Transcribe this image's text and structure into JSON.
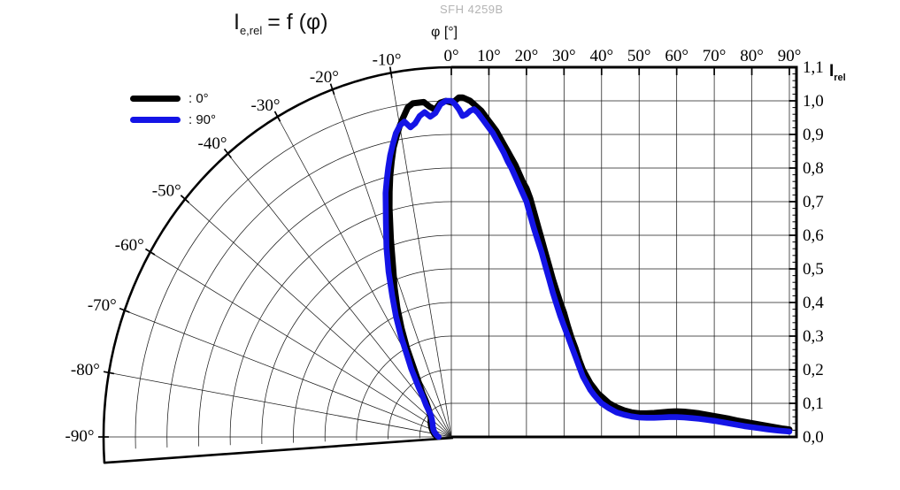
{
  "device_label": "SFH 4259B",
  "title": {
    "main": "I",
    "sub": "e,rel",
    "rest": "= f (φ)"
  },
  "axis_top": {
    "title": "φ [°]",
    "tick_angles": [
      0,
      10,
      20,
      30,
      40,
      50,
      60,
      70,
      80,
      90
    ],
    "tick_labels": [
      "0°",
      "10°",
      "20°",
      "30°",
      "40°",
      "50°",
      "60°",
      "70°",
      "80°",
      "90°"
    ]
  },
  "axis_polar": {
    "tick_angles": [
      -10,
      -20,
      -30,
      -40,
      -50,
      -60,
      -70,
      -80,
      -90
    ],
    "tick_labels": [
      "-10°",
      "-20°",
      "-30°",
      "-40°",
      "-50°",
      "-60°",
      "-70°",
      "-80°",
      "-90°"
    ]
  },
  "axis_right": {
    "title_main": "I",
    "title_sub": "rel",
    "tick_values": [
      1.1,
      1.0,
      0.9,
      0.8,
      0.7,
      0.6,
      0.5,
      0.4,
      0.3,
      0.2,
      0.1,
      0.0
    ],
    "tick_labels": [
      "1,1",
      "1,0",
      "0,9",
      "0,8",
      "0,7",
      "0,6",
      "0,5",
      "0,4",
      "0,3",
      "0,2",
      "0,1",
      "0,0"
    ]
  },
  "legend": {
    "items": [
      {
        "label": ": 0°",
        "color": "#000000"
      },
      {
        "label": ": 90°",
        "color": "#1414e6"
      }
    ]
  },
  "chart_data": {
    "type": "line",
    "title": "Ie,rel = f (φ)",
    "subtitle": "SFH 4259B",
    "xlabel": "φ [°]",
    "ylabel": "Irel",
    "xlim": [
      -90,
      90
    ],
    "ylim": [
      0.0,
      1.1
    ],
    "grid": true,
    "legend_position": "top-left",
    "layout": "half-polar grid on left for negative angles, cartesian grid on right for positive angles",
    "series": [
      {
        "name": "0°",
        "color": "#000000",
        "points": [
          [
            -90,
            0.045
          ],
          [
            -85,
            0.05
          ],
          [
            -80,
            0.055
          ],
          [
            -75,
            0.06
          ],
          [
            -70,
            0.065
          ],
          [
            -65,
            0.07
          ],
          [
            -60,
            0.075
          ],
          [
            -55,
            0.08
          ],
          [
            -50,
            0.085
          ],
          [
            -45,
            0.095
          ],
          [
            -40,
            0.115
          ],
          [
            -37,
            0.135
          ],
          [
            -35,
            0.16
          ],
          [
            -32,
            0.2
          ],
          [
            -30,
            0.24
          ],
          [
            -28,
            0.3
          ],
          [
            -26,
            0.36
          ],
          [
            -24,
            0.42
          ],
          [
            -22,
            0.48
          ],
          [
            -20,
            0.54
          ],
          [
            -18,
            0.62
          ],
          [
            -16,
            0.71
          ],
          [
            -15,
            0.755
          ],
          [
            -14,
            0.8
          ],
          [
            -13,
            0.84
          ],
          [
            -12,
            0.88
          ],
          [
            -11,
            0.91
          ],
          [
            -10,
            0.94
          ],
          [
            -9,
            0.965
          ],
          [
            -8,
            0.99
          ],
          [
            -7,
            1.0
          ],
          [
            -6,
            1.0
          ],
          [
            -5,
            1.0
          ],
          [
            -4,
            0.985
          ],
          [
            -3,
            0.975
          ],
          [
            -2,
            0.995
          ],
          [
            -1,
            1.0
          ],
          [
            0,
            0.995
          ],
          [
            1,
            1.0
          ],
          [
            2,
            1.01
          ],
          [
            3,
            1.01
          ],
          [
            4,
            1.005
          ],
          [
            5,
            1.0
          ],
          [
            6,
            0.99
          ],
          [
            7,
            0.98
          ],
          [
            8,
            0.97
          ],
          [
            9,
            0.955
          ],
          [
            10,
            0.94
          ],
          [
            11,
            0.925
          ],
          [
            12,
            0.91
          ],
          [
            13,
            0.89
          ],
          [
            14,
            0.87
          ],
          [
            15,
            0.85
          ],
          [
            16,
            0.83
          ],
          [
            17,
            0.81
          ],
          [
            18,
            0.785
          ],
          [
            19,
            0.76
          ],
          [
            20,
            0.74
          ],
          [
            21,
            0.71
          ],
          [
            22,
            0.67
          ],
          [
            23,
            0.63
          ],
          [
            24,
            0.59
          ],
          [
            25,
            0.55
          ],
          [
            26,
            0.51
          ],
          [
            27,
            0.47
          ],
          [
            28,
            0.435
          ],
          [
            29,
            0.4
          ],
          [
            30,
            0.37
          ],
          [
            31,
            0.33
          ],
          [
            32,
            0.295
          ],
          [
            33,
            0.265
          ],
          [
            34,
            0.23
          ],
          [
            35,
            0.2
          ],
          [
            36,
            0.18
          ],
          [
            37,
            0.16
          ],
          [
            38,
            0.145
          ],
          [
            39,
            0.13
          ],
          [
            40,
            0.12
          ],
          [
            42,
            0.1
          ],
          [
            44,
            0.088
          ],
          [
            46,
            0.079
          ],
          [
            48,
            0.073
          ],
          [
            50,
            0.07
          ],
          [
            52,
            0.07
          ],
          [
            54,
            0.071
          ],
          [
            56,
            0.073
          ],
          [
            58,
            0.075
          ],
          [
            60,
            0.076
          ],
          [
            62,
            0.075
          ],
          [
            64,
            0.073
          ],
          [
            66,
            0.07
          ],
          [
            68,
            0.066
          ],
          [
            70,
            0.062
          ],
          [
            72,
            0.058
          ],
          [
            74,
            0.054
          ],
          [
            76,
            0.049
          ],
          [
            78,
            0.045
          ],
          [
            80,
            0.041
          ],
          [
            82,
            0.037
          ],
          [
            84,
            0.033
          ],
          [
            86,
            0.029
          ],
          [
            88,
            0.025
          ],
          [
            90,
            0.022
          ]
        ]
      },
      {
        "name": "90°",
        "color": "#1414e6",
        "points": [
          [
            -90,
            0.04
          ],
          [
            -85,
            0.045
          ],
          [
            -80,
            0.05
          ],
          [
            -75,
            0.055
          ],
          [
            -70,
            0.06
          ],
          [
            -65,
            0.064
          ],
          [
            -60,
            0.068
          ],
          [
            -55,
            0.073
          ],
          [
            -50,
            0.08
          ],
          [
            -45,
            0.092
          ],
          [
            -40,
            0.125
          ],
          [
            -37,
            0.15
          ],
          [
            -35,
            0.18
          ],
          [
            -32,
            0.24
          ],
          [
            -30,
            0.28
          ],
          [
            -28,
            0.34
          ],
          [
            -26,
            0.4
          ],
          [
            -24,
            0.46
          ],
          [
            -22,
            0.53
          ],
          [
            -20,
            0.6
          ],
          [
            -18,
            0.67
          ],
          [
            -16,
            0.755
          ],
          [
            -15,
            0.79
          ],
          [
            -14,
            0.825
          ],
          [
            -13,
            0.86
          ],
          [
            -12,
            0.89
          ],
          [
            -11,
            0.92
          ],
          [
            -10,
            0.94
          ],
          [
            -9,
            0.95
          ],
          [
            -8,
            0.93
          ],
          [
            -7,
            0.94
          ],
          [
            -6,
            0.96
          ],
          [
            -5,
            0.97
          ],
          [
            -4,
            0.955
          ],
          [
            -3,
            0.965
          ],
          [
            -2,
            0.99
          ],
          [
            -1,
            1.0
          ],
          [
            0,
            1.0
          ],
          [
            1,
            0.99
          ],
          [
            2,
            0.975
          ],
          [
            3,
            0.955
          ],
          [
            4,
            0.96
          ],
          [
            5,
            0.97
          ],
          [
            6,
            0.975
          ],
          [
            7,
            0.965
          ],
          [
            8,
            0.95
          ],
          [
            9,
            0.935
          ],
          [
            10,
            0.92
          ],
          [
            11,
            0.905
          ],
          [
            12,
            0.885
          ],
          [
            13,
            0.865
          ],
          [
            14,
            0.845
          ],
          [
            15,
            0.82
          ],
          [
            16,
            0.8
          ],
          [
            17,
            0.775
          ],
          [
            18,
            0.75
          ],
          [
            19,
            0.725
          ],
          [
            20,
            0.7
          ],
          [
            21,
            0.66
          ],
          [
            22,
            0.62
          ],
          [
            23,
            0.585
          ],
          [
            24,
            0.55
          ],
          [
            25,
            0.51
          ],
          [
            26,
            0.47
          ],
          [
            27,
            0.43
          ],
          [
            28,
            0.395
          ],
          [
            29,
            0.36
          ],
          [
            30,
            0.33
          ],
          [
            31,
            0.3
          ],
          [
            32,
            0.27
          ],
          [
            33,
            0.24
          ],
          [
            34,
            0.21
          ],
          [
            35,
            0.18
          ],
          [
            36,
            0.16
          ],
          [
            37,
            0.14
          ],
          [
            38,
            0.125
          ],
          [
            39,
            0.112
          ],
          [
            40,
            0.1
          ],
          [
            42,
            0.085
          ],
          [
            44,
            0.073
          ],
          [
            46,
            0.066
          ],
          [
            48,
            0.061
          ],
          [
            50,
            0.058
          ],
          [
            52,
            0.057
          ],
          [
            54,
            0.057
          ],
          [
            56,
            0.058
          ],
          [
            58,
            0.059
          ],
          [
            60,
            0.059
          ],
          [
            62,
            0.058
          ],
          [
            64,
            0.056
          ],
          [
            66,
            0.054
          ],
          [
            68,
            0.051
          ],
          [
            70,
            0.048
          ],
          [
            72,
            0.044
          ],
          [
            74,
            0.04
          ],
          [
            76,
            0.036
          ],
          [
            78,
            0.032
          ],
          [
            80,
            0.029
          ],
          [
            82,
            0.026
          ],
          [
            84,
            0.023
          ],
          [
            86,
            0.02
          ],
          [
            88,
            0.018
          ],
          [
            90,
            0.016
          ]
        ]
      }
    ]
  }
}
